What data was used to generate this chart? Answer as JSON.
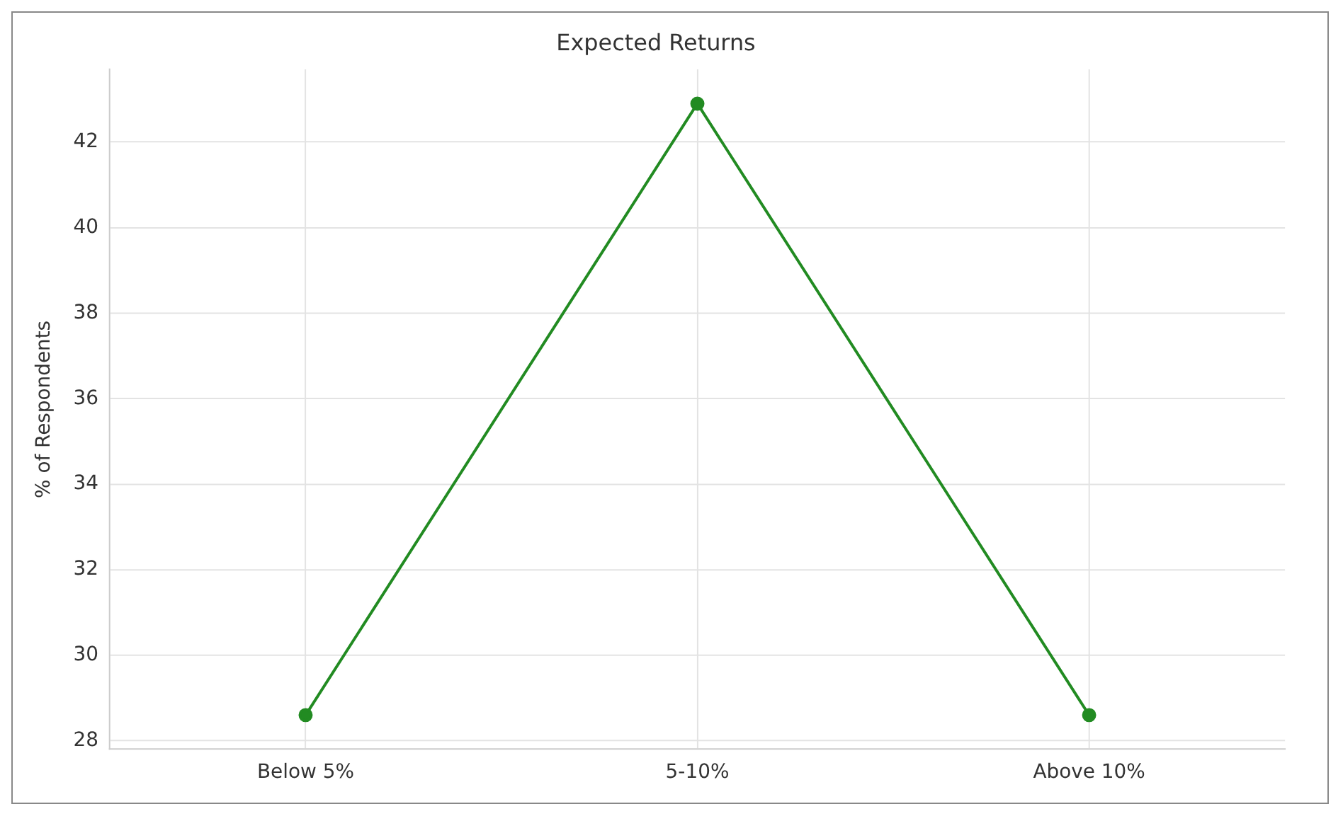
{
  "chart_data": {
    "type": "line",
    "title": "Expected Returns",
    "ylabel": "% of Respondents",
    "categories": [
      "Below 5%",
      "5-10%",
      "Above 10%"
    ],
    "series": [
      {
        "color": "#228b22",
        "values": [
          28.6,
          42.9,
          28.6
        ]
      }
    ],
    "ylim": [
      27.8,
      43.7
    ],
    "yticks": [
      28,
      30,
      32,
      34,
      36,
      38,
      40,
      42
    ],
    "grid": true,
    "marker": "circle",
    "line_style": "solid",
    "legend": false
  }
}
